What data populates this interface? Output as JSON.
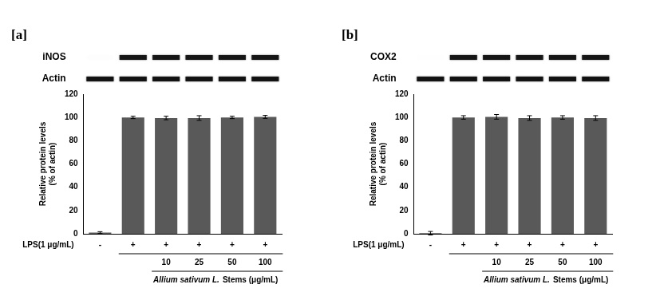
{
  "chart_data": [
    {
      "type": "bar",
      "title": "[a]",
      "blot_labels": [
        "iNOS",
        "Actin"
      ],
      "categories": [
        "-",
        "+",
        "+",
        "+",
        "+",
        "+"
      ],
      "category_title": "LPS(1 μg/mL)",
      "concentrations": [
        null,
        null,
        10,
        25,
        50,
        100
      ],
      "concentration_title": [
        "Allium sativum L.",
        "Stems (μg/mL)"
      ],
      "values": [
        1,
        100,
        99.5,
        99.5,
        100,
        100.5
      ],
      "errors": [
        0.8,
        1,
        1.5,
        2,
        1,
        1.3
      ],
      "color": "#595959",
      "ylabel": "Relative protein levels (% of actin)",
      "ylim": [
        0,
        120
      ],
      "yticks": [
        0,
        20,
        40,
        60,
        80,
        100,
        120
      ],
      "grid": false
    },
    {
      "type": "bar",
      "title": "[b]",
      "blot_labels": [
        "COX2",
        "Actin"
      ],
      "categories": [
        "-",
        "+",
        "+",
        "+",
        "+",
        "+"
      ],
      "category_title": "LPS(1 μg/mL)",
      "concentrations": [
        null,
        null,
        10,
        25,
        50,
        100
      ],
      "concentration_title": [
        "Allium sativum L.",
        "Stems (μg/mL)"
      ],
      "values": [
        0.5,
        100,
        100.5,
        99.5,
        100,
        99.5
      ],
      "errors": [
        1.5,
        1.5,
        2,
        2,
        1.5,
        2
      ],
      "color": "#595959",
      "ylabel": "Relative protein levels (% of actin)",
      "ylim": [
        0,
        120
      ],
      "yticks": [
        0,
        20,
        40,
        60,
        80,
        100,
        120
      ],
      "grid": false
    }
  ]
}
